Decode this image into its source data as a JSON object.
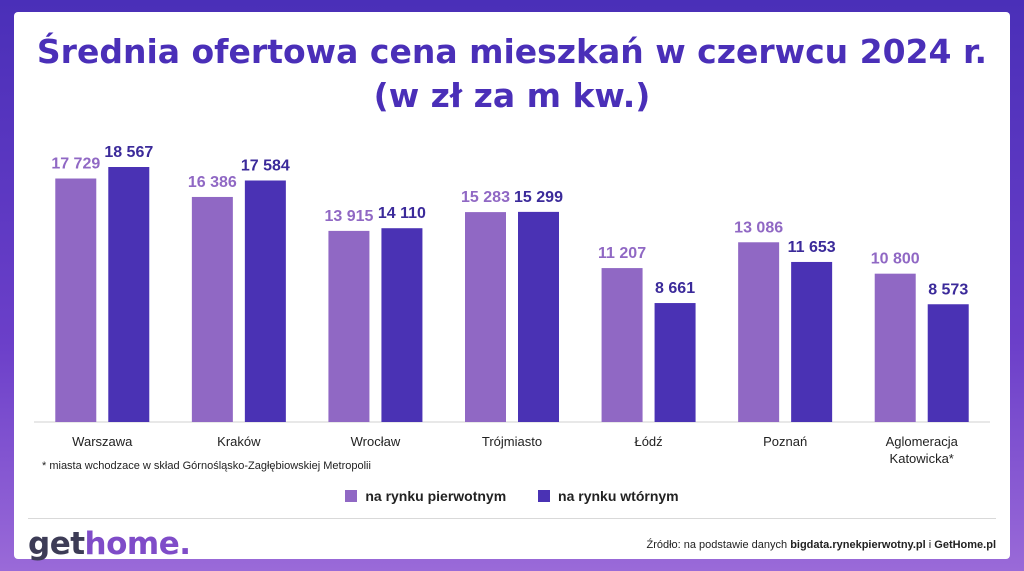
{
  "title_line1": "Średnia ofertowa cena mieszkań w czerwcu  2024 r.",
  "title_line2": "(w zł za m kw.)",
  "chart_data": {
    "type": "bar",
    "categories": [
      "Warszawa",
      "Kraków",
      "Wrocław",
      "Trójmiasto",
      "Łódź",
      "Poznań",
      "Aglomeracja Katowicka*"
    ],
    "series": [
      {
        "name": "na rynku pierwotnym",
        "color": "#9068c4",
        "values": [
          17729,
          16386,
          13915,
          15283,
          11207,
          13086,
          10800
        ],
        "labels": [
          "17 729",
          "16 386",
          "13 915",
          "15 283",
          "11 207",
          "13 086",
          "10 800"
        ]
      },
      {
        "name": "na rynku wtórnym",
        "color": "#4a32b4",
        "values": [
          18567,
          17584,
          14110,
          15299,
          8661,
          11653,
          8573
        ],
        "labels": [
          "18 567",
          "17 584",
          "14 110",
          "15 299",
          "8 661",
          "11 653",
          "8 573"
        ]
      }
    ],
    "ylim": [
      0,
      18567
    ],
    "title": "Średnia ofertowa cena mieszkań w czerwcu  2024 r. (w zł za m kw.)",
    "xlabel": "",
    "ylabel": ""
  },
  "footnote": "* miasta wchodzace w skład Górnośląsko-Zagłębiowskiej Metropolii",
  "legend": {
    "primary": "na rynku pierwotnym",
    "secondary": "na rynku wtórnym",
    "primary_color": "#9068c4",
    "secondary_color": "#4a32b4"
  },
  "logo": {
    "part1": "get",
    "part2": "home."
  },
  "source": {
    "prefix": "Źródło: na podstawie danych",
    "site1": "bigdata.rynekpierwotny.pl",
    "connector": "i",
    "site2": "GetHome.pl"
  }
}
